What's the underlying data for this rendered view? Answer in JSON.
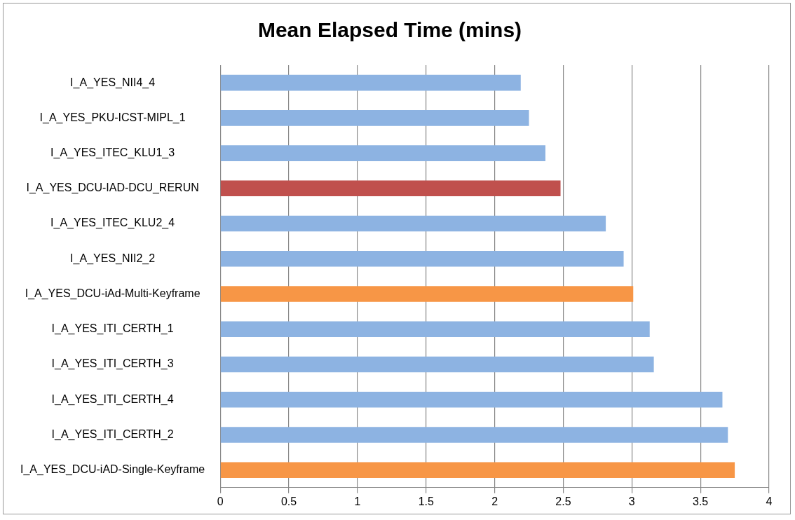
{
  "chart_data": {
    "type": "bar",
    "orientation": "horizontal",
    "title": "Mean Elapsed Time (mins)",
    "categories": [
      "I_A_YES_NII4_4",
      "I_A_YES_PKU-ICST-MIPL_1",
      "I_A_YES_ITEC_KLU1_3",
      "I_A_YES_DCU-IAD-DCU_RERUN",
      "I_A_YES_ITEC_KLU2_4",
      "I_A_YES_NII2_2",
      "I_A_YES_DCU-iAd-Multi-Keyframe",
      "I_A_YES_ITI_CERTH_1",
      "I_A_YES_ITI_CERTH_3",
      "I_A_YES_ITI_CERTH_4",
      "I_A_YES_ITI_CERTH_2",
      "I_A_YES_DCU-iAD-Single-Keyframe"
    ],
    "values": [
      2.19,
      2.25,
      2.37,
      2.48,
      2.81,
      2.94,
      3.01,
      3.13,
      3.16,
      3.66,
      3.7,
      3.75
    ],
    "colors": [
      "#8db3e2",
      "#8db3e2",
      "#8db3e2",
      "#c0504d",
      "#8db3e2",
      "#8db3e2",
      "#f79646",
      "#8db3e2",
      "#8db3e2",
      "#8db3e2",
      "#8db3e2",
      "#f79646"
    ],
    "xlim": [
      0,
      4
    ],
    "xticks": [
      0,
      0.5,
      1,
      1.5,
      2,
      2.5,
      3,
      3.5,
      4
    ],
    "grid": "x"
  }
}
